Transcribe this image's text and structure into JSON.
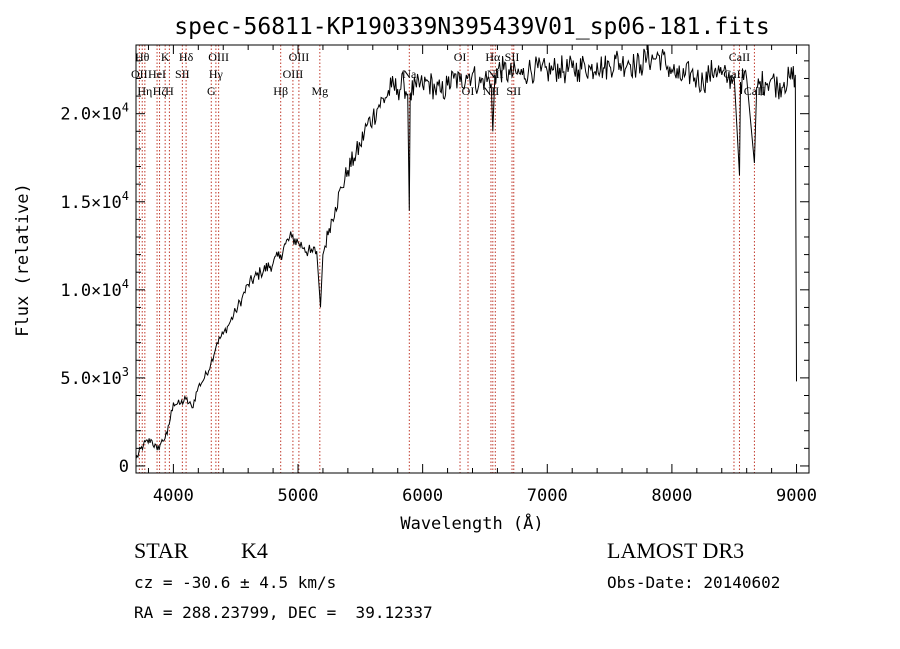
{
  "chart_data": {
    "type": "line",
    "title": "spec-56811-KP190339N395439V01_sp06-181.fits",
    "xlabel": "Wavelength (Å)",
    "ylabel": "Flux (relative)",
    "xlim": [
      3700,
      9100
    ],
    "ylim": [
      -400,
      23900
    ],
    "grid": false,
    "x_ticks": [
      {
        "value": 4000,
        "label": "4000"
      },
      {
        "value": 5000,
        "label": "5000"
      },
      {
        "value": 6000,
        "label": "6000"
      },
      {
        "value": 7000,
        "label": "7000"
      },
      {
        "value": 8000,
        "label": "8000"
      },
      {
        "value": 9000,
        "label": "9000"
      }
    ],
    "y_ticks": [
      {
        "value": 0,
        "mant": "0",
        "exp": ""
      },
      {
        "value": 5000,
        "mant": "5.0×10",
        "exp": "3"
      },
      {
        "value": 10000,
        "mant": "1.0×10",
        "exp": "4"
      },
      {
        "value": 15000,
        "mant": "1.5×10",
        "exp": "4"
      },
      {
        "value": 20000,
        "mant": "2.0×10",
        "exp": "4"
      }
    ],
    "series": [
      {
        "color": "#000000",
        "x": [
          3700,
          3760,
          3820,
          3870,
          3900,
          3950,
          4000,
          4050,
          4100,
          4150,
          4200,
          4250,
          4300,
          4350,
          4400,
          4450,
          4500,
          4550,
          4600,
          4700,
          4800,
          4860,
          4900,
          4950,
          5000,
          5050,
          5100,
          5150,
          5180,
          5200,
          5250,
          5300,
          5350,
          5400,
          5450,
          5500,
          5550,
          5600,
          5650,
          5700,
          5750,
          5800,
          5850,
          5880,
          5893,
          5900,
          5950,
          6000,
          6050,
          6100,
          6150,
          6200,
          6250,
          6300,
          6350,
          6400,
          6450,
          6500,
          6550,
          6563,
          6580,
          6600,
          6650,
          6700,
          6750,
          6800,
          6850,
          6900,
          6950,
          7000,
          7050,
          7100,
          7150,
          7200,
          7250,
          7300,
          7350,
          7400,
          7450,
          7500,
          7550,
          7600,
          7650,
          7700,
          7750,
          7800,
          7850,
          7900,
          7950,
          8000,
          8050,
          8100,
          8150,
          8200,
          8250,
          8300,
          8350,
          8400,
          8450,
          8500,
          8542,
          8550,
          8600,
          8662,
          8680,
          8700,
          8750,
          8800,
          8850,
          8900,
          8950,
          8990,
          9000
        ],
        "y": [
          400,
          1200,
          1500,
          900,
          1300,
          1800,
          3600,
          3500,
          3800,
          3300,
          4500,
          5000,
          5800,
          7000,
          7500,
          8100,
          8800,
          9500,
          10300,
          11000,
          11500,
          12000,
          12600,
          13000,
          12700,
          12400,
          12100,
          12200,
          9000,
          12000,
          13500,
          14700,
          15800,
          16800,
          17500,
          18200,
          19300,
          19800,
          20500,
          20900,
          21500,
          21400,
          21700,
          21100,
          14500,
          21200,
          21500,
          21600,
          21800,
          21400,
          21200,
          21600,
          22000,
          21800,
          22200,
          22300,
          21600,
          22000,
          21700,
          19000,
          22200,
          22500,
          22500,
          22200,
          22300,
          22200,
          22500,
          22500,
          22400,
          22400,
          22500,
          22600,
          22400,
          22600,
          22500,
          22800,
          22500,
          22900,
          22600,
          22700,
          23100,
          22800,
          23000,
          22700,
          22800,
          23200,
          23100,
          23300,
          22800,
          22500,
          22000,
          22100,
          22300,
          22000,
          21800,
          22200,
          22600,
          22200,
          22000,
          22100,
          16500,
          21800,
          22000,
          17200,
          21500,
          21700,
          21800,
          22000,
          21500,
          21800,
          22000,
          22200,
          4800
        ]
      }
    ]
  },
  "lines": [
    {
      "w": 3727,
      "label": "OII",
      "row": 1
    },
    {
      "w": 3750,
      "label": "Hθ",
      "row": 0
    },
    {
      "w": 3771,
      "label": "Hη",
      "row": 2
    },
    {
      "w": 3869,
      "label": "HeI",
      "row": 1
    },
    {
      "w": 3889,
      "label": "Hζ",
      "row": 2
    },
    {
      "w": 3934,
      "label": "K",
      "row": 0
    },
    {
      "w": 3968,
      "label": "H",
      "row": 2
    },
    {
      "w": 4072,
      "label": "SII",
      "row": 1
    },
    {
      "w": 4102,
      "label": "Hδ",
      "row": 0
    },
    {
      "w": 4304,
      "label": "G",
      "row": 2
    },
    {
      "w": 4341,
      "label": "Hγ",
      "row": 1
    },
    {
      "w": 4363,
      "label": "OIII",
      "row": 0
    },
    {
      "w": 4861,
      "label": "Hβ",
      "row": 2
    },
    {
      "w": 4959,
      "label": "OIII",
      "row": 1
    },
    {
      "w": 5007,
      "label": "OIII",
      "row": 0
    },
    {
      "w": 5175,
      "label": "Mg",
      "row": 2
    },
    {
      "w": 5893,
      "label": "Na",
      "row": 1
    },
    {
      "w": 6300,
      "label": "OI",
      "row": 0
    },
    {
      "w": 6364,
      "label": "OI",
      "row": 2
    },
    {
      "w": 6548,
      "label": "NII",
      "row": 2
    },
    {
      "w": 6563,
      "label": "Hα",
      "row": 0
    },
    {
      "w": 6583,
      "label": "NII",
      "row": 1
    },
    {
      "w": 6717,
      "label": "SII",
      "row": 0
    },
    {
      "w": 6731,
      "label": "SII",
      "row": 2
    },
    {
      "w": 8498,
      "label": "CaII",
      "row": 1
    },
    {
      "w": 8542,
      "label": "CaII",
      "row": 0
    },
    {
      "w": 8662,
      "label": "CaII",
      "row": 2
    }
  ],
  "info": {
    "class": "STAR",
    "subclass": "K4",
    "survey": "LAMOST DR3",
    "cz": "cz = -30.6 ± 4.5 km/s",
    "obsdate": "Obs-Date: 20140602",
    "radec": "RA = 288.23799, DEC =  39.12337"
  }
}
